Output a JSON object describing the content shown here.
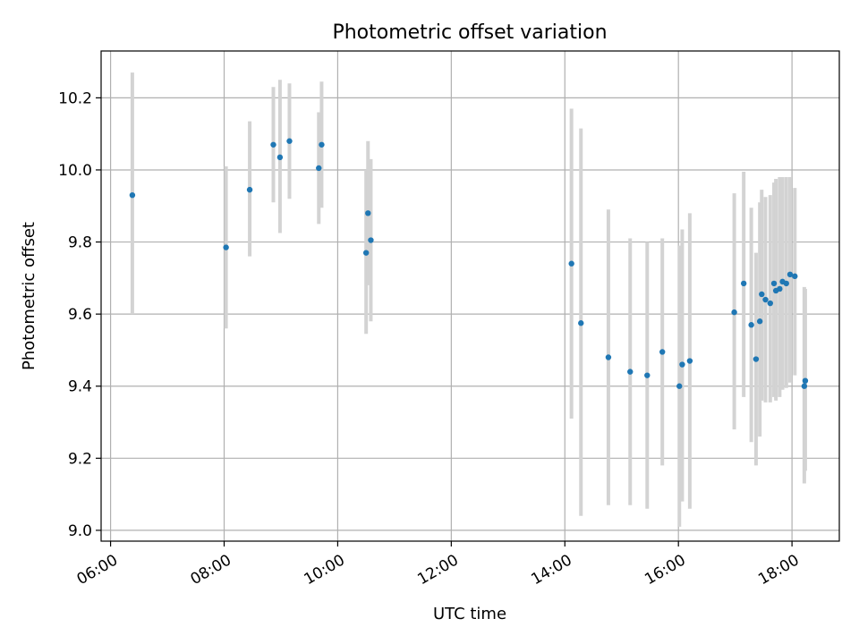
{
  "chart_data": {
    "type": "scatter",
    "title": "Photometric offset variation",
    "xlabel": "UTC time",
    "ylabel": "Photometric offset",
    "xlim": [
      "05:50",
      "18:50"
    ],
    "ylim": [
      8.97,
      10.33
    ],
    "x_ticks": [
      "06:00",
      "08:00",
      "10:00",
      "12:00",
      "14:00",
      "16:00",
      "18:00"
    ],
    "y_ticks": [
      "9.0",
      "9.2",
      "9.4",
      "9.6",
      "9.8",
      "10.0",
      "10.2"
    ],
    "grid": true,
    "colors": {
      "points": "#1f77b4",
      "error_bars": "#d3d3d3",
      "grid": "#b0b0b0"
    },
    "series": [
      {
        "points": [
          {
            "time": "06:23",
            "y": 9.93,
            "lo": 9.6,
            "hi": 10.27
          },
          {
            "time": "08:02",
            "y": 9.785,
            "lo": 9.56,
            "hi": 10.01
          },
          {
            "time": "08:27",
            "y": 9.945,
            "lo": 9.76,
            "hi": 10.135
          },
          {
            "time": "08:52",
            "y": 10.07,
            "lo": 9.91,
            "hi": 10.23
          },
          {
            "time": "08:59",
            "y": 10.035,
            "lo": 9.825,
            "hi": 10.25
          },
          {
            "time": "09:09",
            "y": 10.08,
            "lo": 9.92,
            "hi": 10.24
          },
          {
            "time": "09:40",
            "y": 10.005,
            "lo": 9.85,
            "hi": 10.16
          },
          {
            "time": "09:43",
            "y": 10.07,
            "lo": 9.895,
            "hi": 10.245
          },
          {
            "time": "10:30",
            "y": 9.77,
            "lo": 9.545,
            "hi": 10.0
          },
          {
            "time": "10:32",
            "y": 9.88,
            "lo": 9.68,
            "hi": 10.08
          },
          {
            "time": "10:35",
            "y": 9.805,
            "lo": 9.58,
            "hi": 10.03
          },
          {
            "time": "14:07",
            "y": 9.74,
            "lo": 9.31,
            "hi": 10.17
          },
          {
            "time": "14:17",
            "y": 9.575,
            "lo": 9.04,
            "hi": 10.115
          },
          {
            "time": "14:46",
            "y": 9.48,
            "lo": 9.07,
            "hi": 9.89
          },
          {
            "time": "15:09",
            "y": 9.44,
            "lo": 9.07,
            "hi": 9.81
          },
          {
            "time": "15:27",
            "y": 9.43,
            "lo": 9.06,
            "hi": 9.8
          },
          {
            "time": "15:43",
            "y": 9.495,
            "lo": 9.18,
            "hi": 9.81
          },
          {
            "time": "16:01",
            "y": 9.4,
            "lo": 9.01,
            "hi": 9.79
          },
          {
            "time": "16:04",
            "y": 9.46,
            "lo": 9.08,
            "hi": 9.835
          },
          {
            "time": "16:12",
            "y": 9.47,
            "lo": 9.06,
            "hi": 9.88
          },
          {
            "time": "16:59",
            "y": 9.605,
            "lo": 9.28,
            "hi": 9.935
          },
          {
            "time": "17:09",
            "y": 9.685,
            "lo": 9.37,
            "hi": 9.995
          },
          {
            "time": "17:17",
            "y": 9.57,
            "lo": 9.245,
            "hi": 9.895
          },
          {
            "time": "17:22",
            "y": 9.475,
            "lo": 9.18,
            "hi": 9.77
          },
          {
            "time": "17:26",
            "y": 9.58,
            "lo": 9.26,
            "hi": 9.91
          },
          {
            "time": "17:28",
            "y": 9.655,
            "lo": 9.36,
            "hi": 9.945
          },
          {
            "time": "17:32",
            "y": 9.64,
            "lo": 9.355,
            "hi": 9.925
          },
          {
            "time": "17:37",
            "y": 9.63,
            "lo": 9.355,
            "hi": 9.93
          },
          {
            "time": "17:41",
            "y": 9.685,
            "lo": 9.37,
            "hi": 9.965
          },
          {
            "time": "17:43",
            "y": 9.665,
            "lo": 9.36,
            "hi": 9.975
          },
          {
            "time": "17:47",
            "y": 9.67,
            "lo": 9.37,
            "hi": 9.98
          },
          {
            "time": "17:50",
            "y": 9.69,
            "lo": 9.39,
            "hi": 9.98
          },
          {
            "time": "17:54",
            "y": 9.685,
            "lo": 9.395,
            "hi": 9.98
          },
          {
            "time": "17:58",
            "y": 9.71,
            "lo": 9.41,
            "hi": 9.98
          },
          {
            "time": "18:03",
            "y": 9.705,
            "lo": 9.43,
            "hi": 9.95
          },
          {
            "time": "18:13",
            "y": 9.4,
            "lo": 9.13,
            "hi": 9.675
          },
          {
            "time": "18:14",
            "y": 9.415,
            "lo": 9.165,
            "hi": 9.67
          }
        ]
      }
    ]
  }
}
